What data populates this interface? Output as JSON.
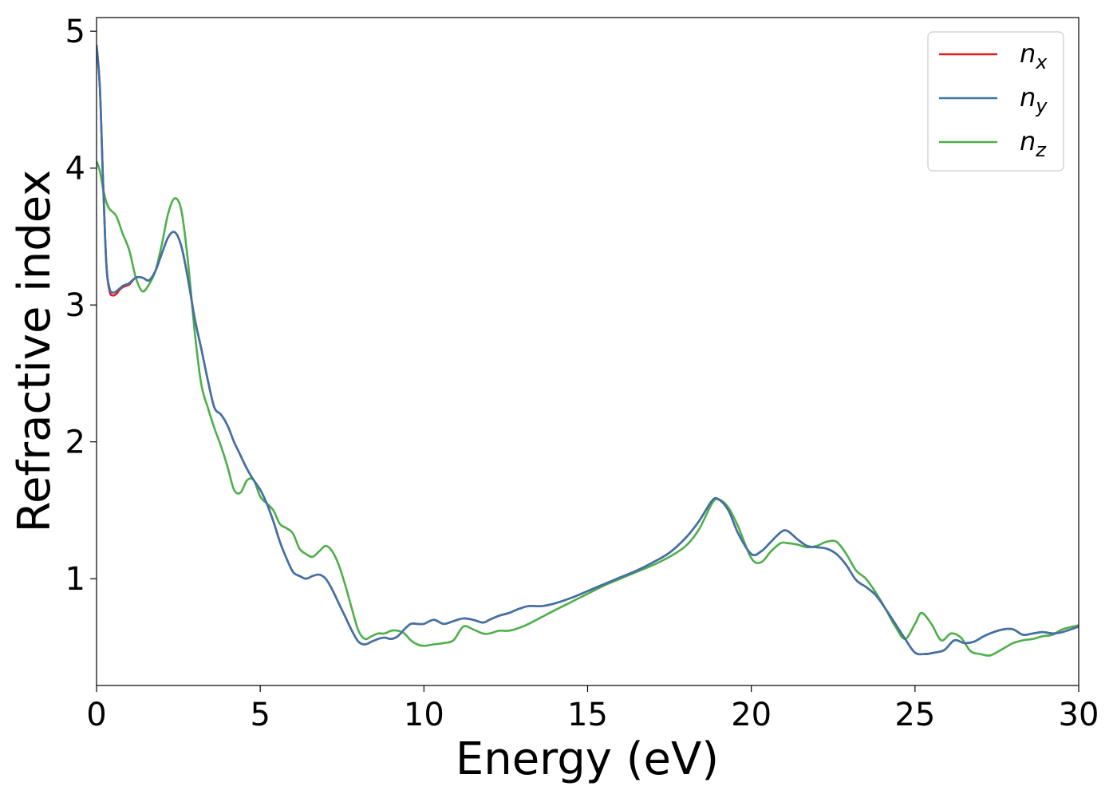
{
  "chart_data": {
    "type": "line",
    "title": "",
    "xlabel": "Energy (eV)",
    "ylabel": "Refractive index",
    "xlim": [
      0,
      30
    ],
    "ylim": [
      0.22,
      5.1
    ],
    "xticks": [
      0,
      5,
      10,
      15,
      20,
      25,
      30
    ],
    "yticks": [
      1,
      2,
      3,
      4,
      5
    ],
    "grid": false,
    "legend_position": "top-right",
    "series": [
      {
        "name": "n",
        "subscript": "x",
        "color": "#e41a1c",
        "x": [
          0,
          0.1,
          0.2,
          0.3,
          0.4,
          0.5,
          0.6,
          0.7,
          0.8,
          0.9,
          1.0,
          1.2,
          1.4,
          1.6,
          1.8,
          2.0,
          2.2,
          2.4,
          2.6,
          2.8,
          3.0,
          3.2,
          3.4,
          3.6,
          3.8,
          4.0,
          4.2,
          4.4,
          4.6,
          4.8,
          5.0,
          5.2,
          5.4,
          5.6,
          5.8,
          6.0,
          6.2,
          6.4,
          6.6,
          6.8,
          7.0,
          7.2,
          7.4,
          7.6,
          7.8,
          8.0,
          8.2,
          8.4,
          8.6,
          8.8,
          9.0,
          9.2,
          9.4,
          9.6,
          9.8,
          10.0,
          10.3,
          10.6,
          10.9,
          11.2,
          11.5,
          11.8,
          12.0,
          12.3,
          12.6,
          12.9,
          13.2,
          13.6,
          14.0,
          14.5,
          15.0,
          15.5,
          16.0,
          16.5,
          17.0,
          17.5,
          18.0,
          18.4,
          18.8,
          19.0,
          19.3,
          19.6,
          20.0,
          20.3,
          20.6,
          20.9,
          21.1,
          21.4,
          21.7,
          22.0,
          22.3,
          22.6,
          22.9,
          23.2,
          23.5,
          23.8,
          24.1,
          24.4,
          24.7,
          25.0,
          25.3,
          25.6,
          25.9,
          26.2,
          26.5,
          26.8,
          27.1,
          27.4,
          27.7,
          28.0,
          28.3,
          28.6,
          28.9,
          29.2,
          29.5,
          30.0
        ],
        "y": [
          4.9,
          4.6,
          3.9,
          3.3,
          3.1,
          3.07,
          3.08,
          3.11,
          3.13,
          3.14,
          3.15,
          3.2,
          3.2,
          3.18,
          3.25,
          3.38,
          3.5,
          3.53,
          3.42,
          3.18,
          2.9,
          2.68,
          2.45,
          2.25,
          2.2,
          2.12,
          2.0,
          1.9,
          1.8,
          1.72,
          1.65,
          1.55,
          1.42,
          1.27,
          1.15,
          1.05,
          1.02,
          1.0,
          1.02,
          1.03,
          1.0,
          0.92,
          0.82,
          0.72,
          0.62,
          0.54,
          0.52,
          0.54,
          0.56,
          0.57,
          0.56,
          0.58,
          0.63,
          0.67,
          0.67,
          0.67,
          0.7,
          0.67,
          0.69,
          0.71,
          0.7,
          0.68,
          0.7,
          0.73,
          0.75,
          0.78,
          0.8,
          0.8,
          0.82,
          0.86,
          0.91,
          0.96,
          1.01,
          1.06,
          1.12,
          1.19,
          1.3,
          1.42,
          1.57,
          1.58,
          1.5,
          1.33,
          1.18,
          1.2,
          1.27,
          1.34,
          1.35,
          1.29,
          1.24,
          1.23,
          1.22,
          1.18,
          1.1,
          0.99,
          0.94,
          0.88,
          0.78,
          0.67,
          0.56,
          0.46,
          0.45,
          0.46,
          0.48,
          0.55,
          0.53,
          0.54,
          0.58,
          0.61,
          0.63,
          0.63,
          0.59,
          0.6,
          0.61,
          0.6,
          0.61,
          0.65
        ]
      },
      {
        "name": "n",
        "subscript": "y",
        "color": "#3c74a8",
        "x": [
          0,
          0.1,
          0.2,
          0.3,
          0.4,
          0.5,
          0.6,
          0.7,
          0.8,
          0.9,
          1.0,
          1.2,
          1.4,
          1.6,
          1.8,
          2.0,
          2.2,
          2.4,
          2.6,
          2.8,
          3.0,
          3.2,
          3.4,
          3.6,
          3.8,
          4.0,
          4.2,
          4.4,
          4.6,
          4.8,
          5.0,
          5.2,
          5.4,
          5.6,
          5.8,
          6.0,
          6.2,
          6.4,
          6.6,
          6.8,
          7.0,
          7.2,
          7.4,
          7.6,
          7.8,
          8.0,
          8.2,
          8.4,
          8.6,
          8.8,
          9.0,
          9.2,
          9.4,
          9.6,
          9.8,
          10.0,
          10.3,
          10.6,
          10.9,
          11.2,
          11.5,
          11.8,
          12.0,
          12.3,
          12.6,
          12.9,
          13.2,
          13.6,
          14.0,
          14.5,
          15.0,
          15.5,
          16.0,
          16.5,
          17.0,
          17.5,
          18.0,
          18.4,
          18.8,
          19.0,
          19.3,
          19.6,
          20.0,
          20.3,
          20.6,
          20.9,
          21.1,
          21.4,
          21.7,
          22.0,
          22.3,
          22.6,
          22.9,
          23.2,
          23.5,
          23.8,
          24.1,
          24.4,
          24.7,
          25.0,
          25.3,
          25.6,
          25.9,
          26.2,
          26.5,
          26.8,
          27.1,
          27.4,
          27.7,
          28.0,
          28.3,
          28.6,
          28.9,
          29.2,
          29.5,
          30.0
        ],
        "y": [
          4.9,
          4.6,
          3.9,
          3.3,
          3.12,
          3.09,
          3.1,
          3.12,
          3.14,
          3.15,
          3.16,
          3.2,
          3.2,
          3.18,
          3.25,
          3.38,
          3.5,
          3.53,
          3.42,
          3.18,
          2.9,
          2.68,
          2.45,
          2.25,
          2.2,
          2.12,
          2.0,
          1.9,
          1.8,
          1.72,
          1.65,
          1.55,
          1.42,
          1.27,
          1.15,
          1.05,
          1.02,
          1.0,
          1.02,
          1.03,
          1.0,
          0.92,
          0.82,
          0.72,
          0.62,
          0.54,
          0.52,
          0.54,
          0.56,
          0.57,
          0.56,
          0.58,
          0.63,
          0.67,
          0.67,
          0.67,
          0.7,
          0.67,
          0.69,
          0.71,
          0.7,
          0.68,
          0.7,
          0.73,
          0.75,
          0.78,
          0.8,
          0.8,
          0.82,
          0.86,
          0.91,
          0.96,
          1.01,
          1.06,
          1.12,
          1.19,
          1.3,
          1.42,
          1.57,
          1.58,
          1.5,
          1.33,
          1.18,
          1.2,
          1.27,
          1.34,
          1.35,
          1.29,
          1.24,
          1.23,
          1.22,
          1.18,
          1.1,
          0.99,
          0.94,
          0.88,
          0.78,
          0.67,
          0.56,
          0.46,
          0.45,
          0.46,
          0.48,
          0.55,
          0.53,
          0.54,
          0.58,
          0.61,
          0.63,
          0.63,
          0.59,
          0.6,
          0.61,
          0.6,
          0.61,
          0.65
        ]
      },
      {
        "name": "n",
        "subscript": "z",
        "color": "#4daf4a",
        "x": [
          0,
          0.1,
          0.2,
          0.3,
          0.4,
          0.6,
          0.8,
          1.0,
          1.2,
          1.4,
          1.6,
          1.8,
          2.0,
          2.2,
          2.4,
          2.6,
          2.8,
          3.0,
          3.2,
          3.4,
          3.6,
          3.8,
          4.0,
          4.2,
          4.4,
          4.6,
          4.8,
          5.0,
          5.2,
          5.4,
          5.6,
          5.8,
          6.0,
          6.2,
          6.4,
          6.6,
          6.8,
          7.0,
          7.2,
          7.4,
          7.6,
          7.8,
          8.0,
          8.2,
          8.4,
          8.6,
          8.8,
          9.0,
          9.2,
          9.4,
          9.6,
          9.8,
          10.0,
          10.3,
          10.6,
          10.9,
          11.2,
          11.5,
          11.8,
          12.0,
          12.3,
          12.6,
          12.9,
          13.2,
          13.6,
          14.0,
          14.5,
          15.0,
          15.5,
          16.0,
          16.5,
          17.0,
          17.5,
          18.0,
          18.4,
          18.8,
          19.0,
          19.3,
          19.6,
          20.0,
          20.3,
          20.6,
          20.9,
          21.1,
          21.4,
          21.7,
          22.0,
          22.3,
          22.6,
          22.9,
          23.2,
          23.5,
          23.8,
          24.1,
          24.4,
          24.7,
          25.0,
          25.2,
          25.5,
          25.8,
          26.1,
          26.4,
          26.7,
          27.0,
          27.3,
          27.7,
          28.0,
          28.3,
          28.6,
          28.9,
          29.2,
          29.5,
          30.0
        ],
        "y": [
          4.05,
          3.98,
          3.85,
          3.75,
          3.7,
          3.65,
          3.52,
          3.4,
          3.2,
          3.1,
          3.15,
          3.25,
          3.45,
          3.68,
          3.78,
          3.68,
          3.3,
          2.8,
          2.42,
          2.25,
          2.1,
          1.97,
          1.82,
          1.65,
          1.63,
          1.72,
          1.72,
          1.6,
          1.55,
          1.5,
          1.4,
          1.37,
          1.33,
          1.22,
          1.18,
          1.16,
          1.2,
          1.24,
          1.2,
          1.1,
          0.95,
          0.78,
          0.62,
          0.56,
          0.58,
          0.6,
          0.6,
          0.62,
          0.62,
          0.6,
          0.55,
          0.52,
          0.51,
          0.52,
          0.53,
          0.55,
          0.65,
          0.63,
          0.6,
          0.6,
          0.62,
          0.62,
          0.64,
          0.67,
          0.72,
          0.77,
          0.83,
          0.89,
          0.95,
          1.0,
          1.05,
          1.1,
          1.16,
          1.24,
          1.36,
          1.55,
          1.58,
          1.52,
          1.38,
          1.15,
          1.12,
          1.2,
          1.26,
          1.26,
          1.25,
          1.23,
          1.24,
          1.27,
          1.27,
          1.18,
          1.06,
          1.0,
          0.9,
          0.78,
          0.65,
          0.56,
          0.67,
          0.75,
          0.67,
          0.55,
          0.6,
          0.57,
          0.47,
          0.45,
          0.44,
          0.49,
          0.53,
          0.55,
          0.56,
          0.58,
          0.59,
          0.63,
          0.66
        ]
      }
    ]
  }
}
